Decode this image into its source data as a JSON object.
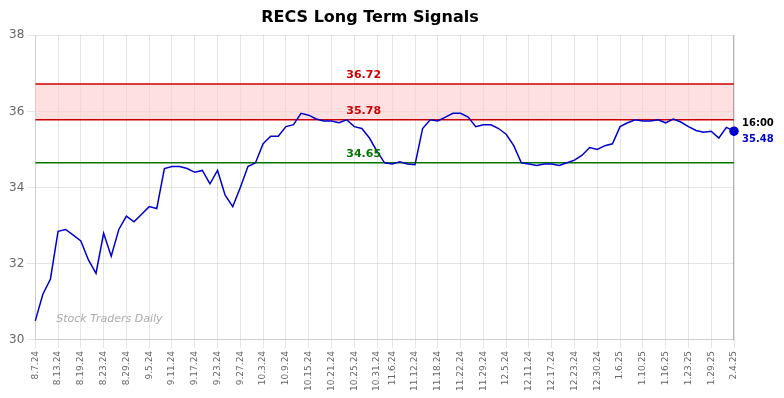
{
  "chart_data": {
    "type": "line",
    "title": "RECS Long Term Signals",
    "watermark": "Stock Traders Daily",
    "categories": [
      "8.7.24",
      null,
      null,
      "8.13.24",
      null,
      null,
      "8.19.24",
      null,
      null,
      "8.23.24",
      null,
      null,
      "8.29.24",
      null,
      null,
      "9.5.24",
      null,
      null,
      "9.11.24",
      null,
      null,
      "9.17.24",
      null,
      null,
      "9.23.24",
      null,
      null,
      "9.27.24",
      null,
      null,
      "10.3.24",
      null,
      null,
      "10.9.24",
      null,
      null,
      "10.15.24",
      null,
      null,
      "10.21.24",
      null,
      null,
      "10.25.24",
      null,
      null,
      "10.31.24",
      null,
      "11.6.24",
      null,
      null,
      "11.12.24",
      null,
      null,
      "11.18.24",
      null,
      null,
      "11.22.24",
      null,
      null,
      "11.29.24",
      null,
      null,
      "12.5.24",
      null,
      null,
      "12.11.24",
      null,
      null,
      "12.17.24",
      null,
      null,
      "12.23.24",
      null,
      null,
      "12.30.24",
      null,
      null,
      "1.6.25",
      null,
      null,
      "1.10.25",
      null,
      null,
      "1.16.25",
      null,
      null,
      "1.23.25",
      null,
      null,
      "1.29.25",
      null,
      null,
      "2.4.25"
    ],
    "values": [
      30.5,
      31.2,
      31.6,
      32.85,
      32.9,
      32.75,
      32.6,
      32.1,
      31.75,
      32.8,
      32.2,
      32.9,
      33.25,
      33.1,
      33.3,
      33.5,
      33.45,
      34.5,
      34.55,
      34.55,
      34.5,
      34.4,
      34.45,
      34.1,
      34.45,
      33.8,
      33.5,
      34.0,
      34.55,
      34.65,
      35.15,
      35.35,
      35.35,
      35.6,
      35.65,
      35.95,
      35.9,
      35.8,
      35.75,
      35.75,
      35.7,
      35.78,
      35.6,
      35.55,
      35.3,
      34.95,
      34.65,
      34.62,
      34.68,
      34.62,
      34.6,
      35.55,
      35.78,
      35.75,
      35.85,
      35.95,
      35.95,
      35.85,
      35.6,
      35.65,
      35.65,
      35.55,
      35.4,
      35.1,
      34.65,
      34.62,
      34.58,
      34.62,
      34.62,
      34.58,
      34.65,
      34.72,
      34.85,
      35.05,
      35.0,
      35.1,
      35.15,
      35.6,
      35.7,
      35.78,
      35.75,
      35.75,
      35.78,
      35.7,
      35.8,
      35.72,
      35.6,
      35.5,
      35.45,
      35.48,
      35.3,
      35.58,
      35.48
    ],
    "color": "#0000cc",
    "ylim": [
      30,
      38
    ],
    "yticks": [
      30,
      32,
      34,
      36,
      38
    ],
    "grid": true,
    "hlines": [
      {
        "value": 36.72,
        "label": "36.72",
        "color": "#cc0000"
      },
      {
        "value": 35.78,
        "label": "35.78",
        "color": "#cc0000"
      },
      {
        "value": 34.65,
        "label": "34.65",
        "color": "#007700"
      }
    ],
    "band": {
      "from": 35.78,
      "to": 36.72,
      "color": "#ffcccc"
    },
    "annotations": [
      {
        "text": "16:00",
        "color": "#000000"
      },
      {
        "text": "35.48",
        "value": 35.48,
        "color": "#0000cc"
      }
    ]
  }
}
